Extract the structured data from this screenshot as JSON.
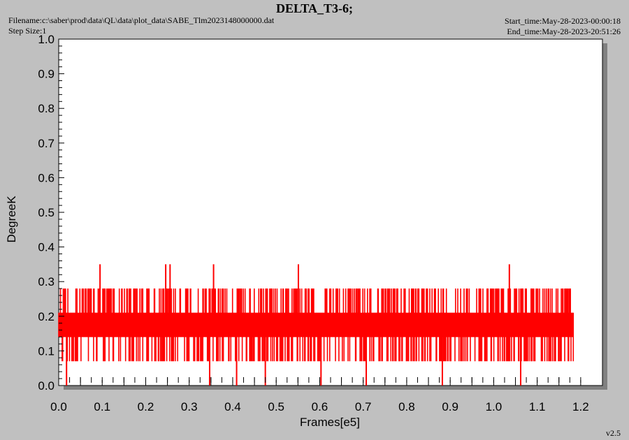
{
  "header": {
    "title": "DELTA_T3-6;",
    "filename": "Filename:c:\\saber\\prod\\data\\QL\\data\\plot_data\\SABE_Tlm2023148000000.dat",
    "step_size": "Step Size:1",
    "start_time": "Start_time:May-28-2023-00:00:18",
    "end_time": "End_time:May-28-2023-20:51:26"
  },
  "footer": {
    "version": "v2.5"
  },
  "colors": {
    "series": "#ff0000",
    "background": "#c0c0c0",
    "plot_bg": "#ffffff",
    "shadow": "#808080"
  },
  "chart_data": {
    "type": "line",
    "title": "DELTA_T3-6;",
    "xlabel": "Frames[e5]",
    "ylabel": "DegreeK",
    "xlim": [
      0.0,
      1.25
    ],
    "ylim": [
      0.0,
      1.0
    ],
    "xticks": [
      "0.0",
      "0.1",
      "0.2",
      "0.3",
      "0.4",
      "0.5",
      "0.6",
      "0.7",
      "0.8",
      "0.9",
      "1.0",
      "1.1",
      "1.2"
    ],
    "yticks": [
      "0.0",
      "0.1",
      "0.2",
      "0.3",
      "0.4",
      "0.5",
      "0.6",
      "0.7",
      "0.8",
      "0.9",
      "1.0"
    ],
    "grid": false,
    "series": [
      {
        "name": "",
        "x_range": [
          0.0,
          1.183
        ],
        "band": [
          0.14,
          0.21
        ],
        "typical_max": 0.28,
        "typical_min": 0.07,
        "spikes_high": [
          {
            "x": 0.095,
            "y": 0.35
          },
          {
            "x": 0.246,
            "y": 0.35
          },
          {
            "x": 0.256,
            "y": 0.35
          },
          {
            "x": 0.356,
            "y": 0.35
          },
          {
            "x": 0.551,
            "y": 0.35
          },
          {
            "x": 1.036,
            "y": 0.35
          }
        ],
        "spikes_low": [
          {
            "x": 0.018,
            "y": 0.0
          },
          {
            "x": 0.347,
            "y": 0.0
          },
          {
            "x": 0.409,
            "y": 0.0
          },
          {
            "x": 0.475,
            "y": 0.0
          },
          {
            "x": 0.603,
            "y": 0.0
          },
          {
            "x": 0.707,
            "y": 0.0
          },
          {
            "x": 0.882,
            "y": 0.0
          },
          {
            "x": 1.062,
            "y": 0.0
          }
        ]
      }
    ]
  }
}
